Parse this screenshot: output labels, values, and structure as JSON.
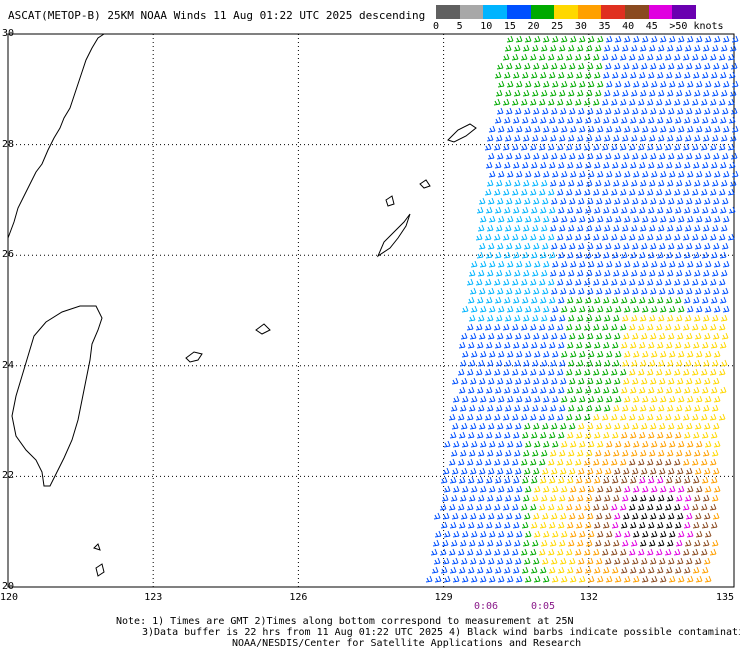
{
  "title": "ASCAT(METOP-B) 25KM NOAA Winds 11 Aug 01:22 UTC 2025 descending",
  "scale": {
    "colors": [
      "#606060",
      "#a8a8a8",
      "#00b4ff",
      "#0050ff",
      "#00aa00",
      "#ffd800",
      "#ffa000",
      "#e03020",
      "#8a4a20",
      "#e000e0",
      "#6a00b0"
    ],
    "labels": [
      "0",
      "5",
      "10",
      "15",
      "20",
      "25",
      "30",
      "35",
      "40",
      "45",
      ">50 knots"
    ]
  },
  "axes": {
    "lat_labels": [
      "30",
      "28",
      "26",
      "24",
      "22",
      "20"
    ],
    "lon_labels": [
      "120",
      "123",
      "126",
      "129",
      "132",
      "135"
    ]
  },
  "times": [
    "0:06",
    "0:05"
  ],
  "notes": [
    "Note: 1) Times are GMT 2)Times along bottom correspond to measurement at 25N",
    "3)Data buffer is 22 hrs from 11 Aug 01:22 UTC 2025 4) Black wind barbs indicate possible contamination",
    "NOAA/NESDIS/Center for Satellite Applications and Research"
  ]
}
